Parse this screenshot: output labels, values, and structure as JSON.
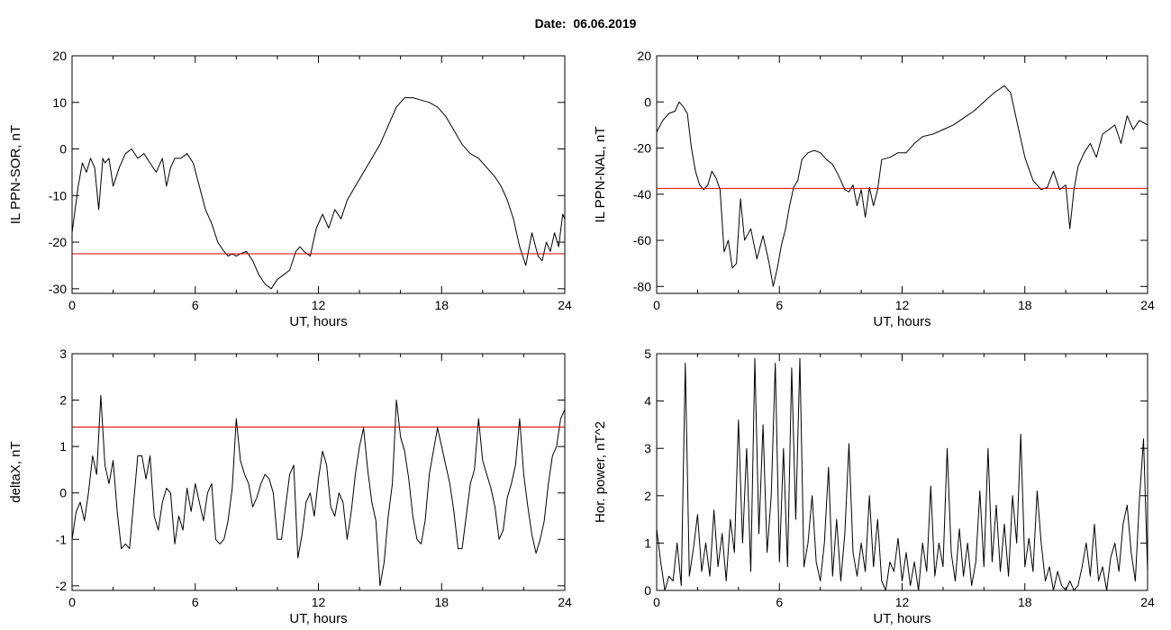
{
  "title": "Date:  06.06.2019",
  "chart_data": [
    {
      "type": "line",
      "xlabel": "UT, hours",
      "ylabel": "IL PPN-SOR, nT",
      "xlim": [
        0,
        24
      ],
      "ylim": [
        -31,
        20
      ],
      "xticks": [
        0,
        6,
        12,
        18,
        24
      ],
      "yticks": [
        -30,
        -20,
        -10,
        0,
        10,
        20
      ],
      "threshold": -22.5,
      "series": [
        {
          "color": "#000000",
          "x": [
            0,
            0.3,
            0.5,
            0.7,
            0.9,
            1.1,
            1.3,
            1.5,
            1.6,
            1.8,
            2.0,
            2.3,
            2.6,
            2.9,
            3.2,
            3.5,
            3.8,
            4.1,
            4.4,
            4.6,
            4.8,
            5.0,
            5.3,
            5.6,
            5.9,
            6.2,
            6.5,
            6.8,
            7.1,
            7.4,
            7.6,
            7.8,
            8.0,
            8.2,
            8.5,
            8.8,
            9.1,
            9.4,
            9.7,
            10.0,
            10.3,
            10.6,
            10.9,
            11.1,
            11.3,
            11.6,
            11.9,
            12.2,
            12.5,
            12.8,
            13.1,
            13.4,
            13.8,
            14.2,
            14.6,
            15.0,
            15.4,
            15.8,
            16.2,
            16.6,
            17.0,
            17.4,
            17.8,
            18.2,
            18.6,
            19.0,
            19.4,
            19.8,
            20.2,
            20.6,
            20.9,
            21.2,
            21.5,
            21.8,
            22.1,
            22.4,
            22.7,
            22.9,
            23.1,
            23.3,
            23.5,
            23.7,
            23.9,
            24.0
          ],
          "y": [
            -18,
            -8,
            -3,
            -5,
            -2,
            -4,
            -13,
            -2,
            -3,
            -2,
            -8,
            -4,
            -1,
            0,
            -2,
            -1,
            -3,
            -5,
            -2,
            -8,
            -4,
            -2,
            -2,
            -1,
            -3,
            -8,
            -13,
            -16,
            -20,
            -22,
            -23,
            -22.5,
            -23,
            -22.5,
            -22,
            -24,
            -27,
            -29,
            -30,
            -28,
            -27,
            -26,
            -22,
            -21,
            -22,
            -23,
            -17,
            -14,
            -17,
            -13,
            -15,
            -11,
            -8,
            -5,
            -2,
            1,
            5,
            9,
            11,
            11,
            10.5,
            10,
            9,
            7,
            4,
            1,
            -1,
            -2,
            -4,
            -6,
            -8,
            -11,
            -15,
            -21,
            -25,
            -18,
            -23,
            -24,
            -20,
            -22,
            -18,
            -21,
            -14,
            -15
          ]
        }
      ]
    },
    {
      "type": "line",
      "xlabel": "UT, hours",
      "ylabel": "IL PPN-NAL, nT",
      "xlim": [
        0,
        24
      ],
      "ylim": [
        -83,
        20
      ],
      "xticks": [
        0,
        6,
        12,
        18,
        24
      ],
      "yticks": [
        -80,
        -60,
        -40,
        -20,
        0,
        20
      ],
      "threshold": -37.5,
      "series": [
        {
          "color": "#000000",
          "x": [
            0,
            0.3,
            0.6,
            0.9,
            1.1,
            1.3,
            1.5,
            1.7,
            1.9,
            2.1,
            2.3,
            2.5,
            2.7,
            2.9,
            3.1,
            3.3,
            3.5,
            3.7,
            3.9,
            4.1,
            4.3,
            4.6,
            4.9,
            5.2,
            5.5,
            5.7,
            5.9,
            6.1,
            6.3,
            6.5,
            6.7,
            6.9,
            7.1,
            7.4,
            7.7,
            8.0,
            8.3,
            8.6,
            8.9,
            9.2,
            9.4,
            9.6,
            9.8,
            10.0,
            10.2,
            10.4,
            10.6,
            10.8,
            11.0,
            11.4,
            11.8,
            12.2,
            12.6,
            13.0,
            13.5,
            14.0,
            14.5,
            15.0,
            15.5,
            16.0,
            16.5,
            17.0,
            17.3,
            17.7,
            18.0,
            18.4,
            18.8,
            19.1,
            19.4,
            19.7,
            20.0,
            20.2,
            20.4,
            20.6,
            20.9,
            21.2,
            21.5,
            21.8,
            22.1,
            22.4,
            22.7,
            23.0,
            23.3,
            23.6,
            24.0
          ],
          "y": [
            -13,
            -8,
            -5,
            -4,
            0,
            -2,
            -5,
            -20,
            -30,
            -36,
            -38,
            -36,
            -30,
            -33,
            -38,
            -65,
            -60,
            -72,
            -70,
            -42,
            -60,
            -55,
            -68,
            -58,
            -70,
            -80,
            -72,
            -62,
            -55,
            -45,
            -37,
            -34,
            -25,
            -22,
            -21,
            -22,
            -25,
            -27,
            -32,
            -38,
            -39,
            -36,
            -45,
            -38,
            -50,
            -37,
            -45,
            -38,
            -25,
            -24,
            -22,
            -22,
            -18,
            -15,
            -14,
            -12,
            -10,
            -7,
            -4,
            0,
            4,
            7,
            4,
            -12,
            -24,
            -34,
            -38,
            -37,
            -30,
            -38,
            -36,
            -55,
            -38,
            -28,
            -22,
            -18,
            -24,
            -14,
            -12,
            -10,
            -18,
            -6,
            -12,
            -8,
            -10
          ]
        }
      ]
    },
    {
      "type": "line",
      "xlabel": "UT, hours",
      "ylabel": "deltaX, nT",
      "xlim": [
        0,
        24
      ],
      "ylim": [
        -2.1,
        3
      ],
      "xticks": [
        0,
        6,
        12,
        18,
        24
      ],
      "yticks": [
        -2,
        -1,
        0,
        1,
        2,
        3
      ],
      "threshold": 1.42,
      "series": [
        {
          "color": "#000000",
          "x": [
            0,
            0.2,
            0.4,
            0.6,
            0.8,
            1.0,
            1.2,
            1.4,
            1.6,
            1.8,
            2.0,
            2.2,
            2.4,
            2.6,
            2.8,
            3.0,
            3.2,
            3.4,
            3.6,
            3.8,
            4.0,
            4.2,
            4.4,
            4.6,
            4.8,
            5.0,
            5.2,
            5.4,
            5.6,
            5.8,
            6.0,
            6.2,
            6.4,
            6.6,
            6.8,
            7.0,
            7.2,
            7.4,
            7.6,
            7.8,
            8.0,
            8.2,
            8.4,
            8.6,
            8.8,
            9.0,
            9.2,
            9.4,
            9.6,
            9.8,
            10.0,
            10.2,
            10.4,
            10.6,
            10.8,
            11.0,
            11.2,
            11.4,
            11.6,
            11.8,
            12.0,
            12.2,
            12.4,
            12.6,
            12.8,
            13.0,
            13.2,
            13.4,
            13.6,
            13.8,
            14.0,
            14.2,
            14.4,
            14.6,
            14.8,
            15.0,
            15.2,
            15.4,
            15.6,
            15.8,
            16.0,
            16.2,
            16.4,
            16.6,
            16.8,
            17.0,
            17.2,
            17.4,
            17.6,
            17.8,
            18.0,
            18.2,
            18.4,
            18.6,
            18.8,
            19.0,
            19.2,
            19.4,
            19.6,
            19.8,
            20.0,
            20.2,
            20.4,
            20.6,
            20.8,
            21.0,
            21.2,
            21.4,
            21.6,
            21.8,
            22.0,
            22.2,
            22.4,
            22.6,
            22.8,
            23.0,
            23.2,
            23.4,
            23.6,
            23.8,
            24.0
          ],
          "y": [
            -1.0,
            -0.4,
            -0.2,
            -0.6,
            0.0,
            0.8,
            0.4,
            2.1,
            0.6,
            0.2,
            0.7,
            -0.4,
            -1.2,
            -1.1,
            -1.2,
            -0.2,
            0.8,
            0.8,
            0.3,
            0.8,
            -0.5,
            -0.8,
            -0.2,
            0.1,
            0.0,
            -1.1,
            -0.5,
            -0.8,
            0.1,
            -0.4,
            0.2,
            -0.2,
            -0.6,
            0.0,
            0.2,
            -1.0,
            -1.1,
            -1.0,
            -0.6,
            0.1,
            1.6,
            0.7,
            0.4,
            0.2,
            -0.3,
            -0.1,
            0.2,
            0.4,
            0.3,
            0.0,
            -1.0,
            -1.0,
            -0.3,
            0.4,
            0.6,
            -1.4,
            -0.9,
            -0.2,
            0.0,
            -0.5,
            0.3,
            0.9,
            0.6,
            -0.3,
            -0.5,
            0.0,
            -0.2,
            -1.0,
            -0.4,
            0.4,
            1.0,
            1.4,
            0.5,
            -0.2,
            -0.6,
            -2.0,
            -1.5,
            -0.5,
            0.2,
            2.0,
            1.2,
            0.9,
            0.3,
            -0.5,
            -1.0,
            -1.1,
            -0.6,
            0.4,
            0.9,
            1.4,
            1.0,
            0.6,
            0.2,
            -0.4,
            -1.2,
            -1.2,
            -0.5,
            0.2,
            0.5,
            1.6,
            0.7,
            0.4,
            0.1,
            -0.3,
            -1.0,
            -0.8,
            -0.1,
            0.2,
            0.6,
            1.6,
            0.4,
            -0.3,
            -0.9,
            -1.3,
            -1.0,
            -0.6,
            0.2,
            0.8,
            1.0,
            1.6,
            1.8
          ]
        }
      ]
    },
    {
      "type": "line",
      "xlabel": "UT, hours",
      "ylabel": "Hor. power, nT^2",
      "xlim": [
        0,
        24
      ],
      "ylim": [
        0,
        5
      ],
      "xticks": [
        0,
        6,
        12,
        18,
        24
      ],
      "yticks": [
        0,
        1,
        2,
        3,
        4,
        5
      ],
      "series": [
        {
          "color": "#000000",
          "x": [
            0,
            0.2,
            0.4,
            0.6,
            0.8,
            1.0,
            1.2,
            1.4,
            1.6,
            1.8,
            2.0,
            2.2,
            2.4,
            2.6,
            2.8,
            3.0,
            3.2,
            3.4,
            3.6,
            3.8,
            4.0,
            4.2,
            4.4,
            4.6,
            4.8,
            5.0,
            5.2,
            5.4,
            5.6,
            5.8,
            6.0,
            6.2,
            6.4,
            6.6,
            6.8,
            7.0,
            7.2,
            7.4,
            7.6,
            7.8,
            8.0,
            8.2,
            8.4,
            8.6,
            8.8,
            9.0,
            9.2,
            9.4,
            9.6,
            9.8,
            10.0,
            10.2,
            10.4,
            10.6,
            10.8,
            11.0,
            11.2,
            11.4,
            11.6,
            11.8,
            12.0,
            12.2,
            12.4,
            12.6,
            12.8,
            13.0,
            13.2,
            13.4,
            13.6,
            13.8,
            14.0,
            14.2,
            14.4,
            14.6,
            14.8,
            15.0,
            15.2,
            15.4,
            15.6,
            15.8,
            16.0,
            16.2,
            16.4,
            16.6,
            16.8,
            17.0,
            17.2,
            17.4,
            17.6,
            17.8,
            18.0,
            18.2,
            18.4,
            18.6,
            18.8,
            19.0,
            19.2,
            19.4,
            19.6,
            19.8,
            20.0,
            20.2,
            20.4,
            20.6,
            20.8,
            21.0,
            21.2,
            21.4,
            21.6,
            21.8,
            22.0,
            22.2,
            22.4,
            22.6,
            22.8,
            23.0,
            23.2,
            23.4,
            23.6,
            23.8,
            24.0
          ],
          "y": [
            1.3,
            0.6,
            0.0,
            0.3,
            0.2,
            1.0,
            0.1,
            4.8,
            0.3,
            0.9,
            1.6,
            0.4,
            1.0,
            0.3,
            1.7,
            0.5,
            1.2,
            0.2,
            1.5,
            0.8,
            3.6,
            1.0,
            3.0,
            0.4,
            4.9,
            1.2,
            3.5,
            0.8,
            2.0,
            4.8,
            0.6,
            3.0,
            0.5,
            4.7,
            1.5,
            4.9,
            0.5,
            1.0,
            2.0,
            0.6,
            0.2,
            1.0,
            2.6,
            0.3,
            1.5,
            0.2,
            1.2,
            3.1,
            0.8,
            0.3,
            1.0,
            0.4,
            2.0,
            0.5,
            1.5,
            0.2,
            0.0,
            0.6,
            0.4,
            1.1,
            0.2,
            0.8,
            0.1,
            0.6,
            0.0,
            1.0,
            0.4,
            2.2,
            0.3,
            1.0,
            0.5,
            3.0,
            0.8,
            0.2,
            1.3,
            0.3,
            1.0,
            0.1,
            0.6,
            2.1,
            0.5,
            3.0,
            0.6,
            1.8,
            0.4,
            1.4,
            0.3,
            2.0,
            1.0,
            3.3,
            0.5,
            1.1,
            0.4,
            2.1,
            1.0,
            0.2,
            0.5,
            0.0,
            0.4,
            0.1,
            0.0,
            0.2,
            0.0,
            0.1,
            0.5,
            1.0,
            0.3,
            1.4,
            0.2,
            0.5,
            0.0,
            0.7,
            1.0,
            0.4,
            1.4,
            1.8,
            0.8,
            0.2,
            1.9,
            3.2,
            0.4
          ]
        }
      ]
    }
  ]
}
